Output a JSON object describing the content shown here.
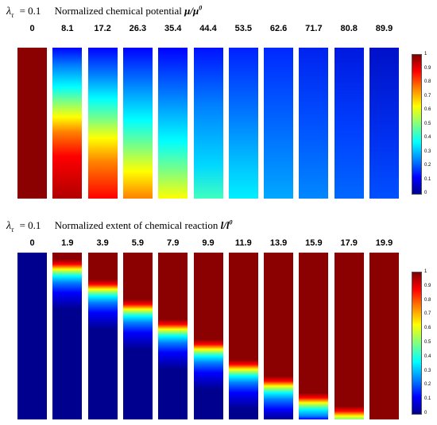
{
  "top_panel": {
    "lambda_symbol": "λ",
    "lambda_subscript": "τ",
    "lambda_value": "= 0.1",
    "title": "Normalized chemical potential",
    "symbol": "μ/μ",
    "symbol_sup": "0",
    "times": [
      "0",
      "8.1",
      "17.2",
      "26.3",
      "35.4",
      "44.4",
      "53.5",
      "62.6",
      "71.7",
      "80.8",
      "89.9"
    ],
    "colorbar_ticks": [
      "1",
      "0.9",
      "0.8",
      "0.7",
      "0.6",
      "0.5",
      "0.4",
      "0.3",
      "0.2",
      "0.1",
      "0"
    ]
  },
  "bottom_panel": {
    "lambda_symbol": "λ",
    "lambda_subscript": "τ",
    "lambda_value": "= 0.1",
    "title": "Normalized extent of chemical reaction",
    "symbol": "l/l",
    "symbol_sup": "0",
    "times": [
      "0",
      "1.9",
      "3.9",
      "5.9",
      "7.9",
      "9.9",
      "11.9",
      "13.9",
      "15.9",
      "17.9",
      "19.9"
    ],
    "colorbar_ticks": [
      "1",
      "0.9",
      "0.8",
      "0.7",
      "0.6",
      "0.5",
      "0.4",
      "0.3",
      "0.2",
      "0.1",
      "0"
    ]
  },
  "colors": {
    "jet_dark_red": "#800000",
    "jet_red": "#ff0000",
    "jet_orange": "#ff8000",
    "jet_yellow": "#ffff00",
    "jet_green": "#80ff80",
    "jet_cyan": "#00ffff",
    "jet_light_blue": "#0080ff",
    "jet_blue": "#0000ff",
    "jet_dark_blue": "#00008f"
  }
}
